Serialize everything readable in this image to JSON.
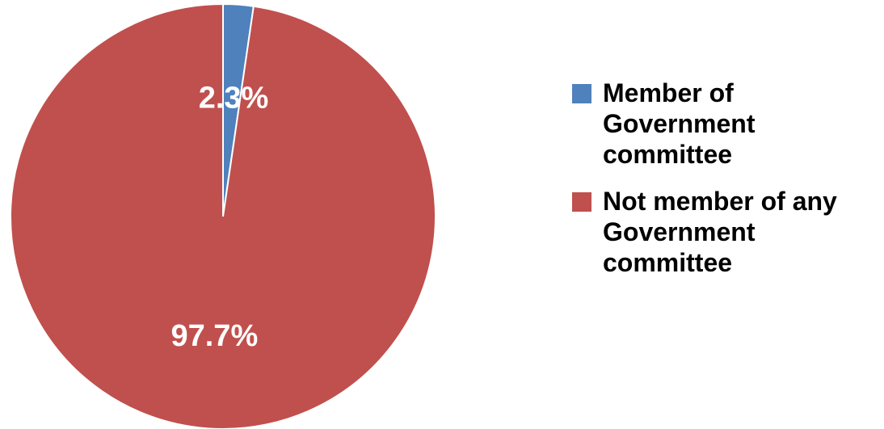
{
  "chart_data": {
    "type": "pie",
    "categories": [
      "Member of Government committee",
      "Not member of any Government committee"
    ],
    "values": [
      2.3,
      97.7
    ],
    "data_labels": [
      "2.3%",
      "97.7%"
    ],
    "colors": [
      "#4f81bd",
      "#c0504d"
    ],
    "title": "",
    "legend_position": "right",
    "start_angle": "12 o'clock",
    "direction": "clockwise"
  }
}
